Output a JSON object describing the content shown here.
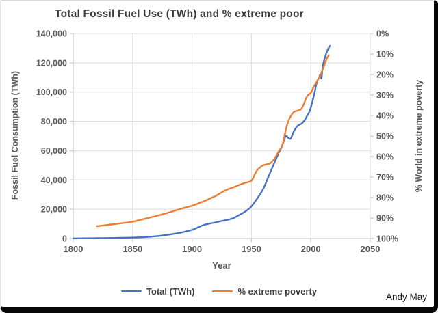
{
  "credit": "Andy May",
  "colors": {
    "series_total": "#4472C4",
    "series_poverty": "#ED7D31",
    "gridline": "#dcdcdc",
    "axis_line": "#bfbfbf",
    "tick_text": "#595959"
  },
  "chart_data": {
    "type": "line",
    "title": "Total Fossil Fuel Use (TWh) and % extreme poor",
    "grid": true,
    "x_axis": {
      "label": "Year",
      "min": 1800,
      "max": 2050,
      "tick_values": [
        1800,
        1850,
        1900,
        1950,
        2000,
        2050
      ],
      "ticks": [
        "1800",
        "1850",
        "1900",
        "1950",
        "2000",
        "2050"
      ]
    },
    "y_left": {
      "label": "Fossil Fuel Consumption (TWh)",
      "min": 0,
      "max": 140000,
      "tick_values": [
        140000,
        120000,
        100000,
        80000,
        60000,
        40000,
        20000,
        0
      ],
      "ticks": [
        "140,000",
        "120,000",
        "100,000",
        "80,000",
        "60,000",
        "40,000",
        "20,000",
        "0"
      ]
    },
    "y_right": {
      "label": "% World in extreme poverty",
      "min": 0,
      "max": 100,
      "inverted": true,
      "tick_values": [
        0,
        10,
        20,
        30,
        40,
        50,
        60,
        70,
        80,
        90,
        100
      ],
      "ticks": [
        "0%",
        "10%",
        "20%",
        "30%",
        "40%",
        "50%",
        "60%",
        "70%",
        "80%",
        "90%",
        "100%"
      ]
    },
    "legend": {
      "position": "bottom",
      "items": [
        {
          "label": "Total (TWh)",
          "color": "#4472C4"
        },
        {
          "label": "% extreme poverty",
          "color": "#ED7D31"
        }
      ]
    },
    "series": [
      {
        "name": "Total (TWh)",
        "axis": "left",
        "color": "#4472C4",
        "points": [
          [
            1800,
            100
          ],
          [
            1810,
            150
          ],
          [
            1820,
            220
          ],
          [
            1830,
            320
          ],
          [
            1840,
            450
          ],
          [
            1850,
            650
          ],
          [
            1860,
            1000
          ],
          [
            1870,
            1600
          ],
          [
            1880,
            2600
          ],
          [
            1890,
            3900
          ],
          [
            1900,
            5900
          ],
          [
            1905,
            7600
          ],
          [
            1910,
            9300
          ],
          [
            1915,
            10200
          ],
          [
            1920,
            11000
          ],
          [
            1925,
            12000
          ],
          [
            1930,
            12800
          ],
          [
            1935,
            14000
          ],
          [
            1940,
            16200
          ],
          [
            1945,
            18500
          ],
          [
            1950,
            22000
          ],
          [
            1955,
            27500
          ],
          [
            1960,
            34000
          ],
          [
            1965,
            43500
          ],
          [
            1970,
            53000
          ],
          [
            1973,
            58500
          ],
          [
            1975,
            61500
          ],
          [
            1977,
            66000
          ],
          [
            1979,
            70000
          ],
          [
            1981,
            68800
          ],
          [
            1983,
            68200
          ],
          [
            1985,
            72000
          ],
          [
            1987,
            75000
          ],
          [
            1989,
            77000
          ],
          [
            1991,
            78000
          ],
          [
            1993,
            79000
          ],
          [
            1995,
            81000
          ],
          [
            1997,
            84000
          ],
          [
            1999,
            87000
          ],
          [
            2001,
            92500
          ],
          [
            2003,
            99000
          ],
          [
            2005,
            106500
          ],
          [
            2007,
            110000
          ],
          [
            2008,
            112000
          ],
          [
            2009,
            109500
          ],
          [
            2010,
            117500
          ],
          [
            2012,
            124000
          ],
          [
            2014,
            128500
          ],
          [
            2016,
            131500
          ]
        ]
      },
      {
        "name": "% extreme poverty",
        "axis": "right",
        "color": "#ED7D31",
        "points": [
          [
            1820,
            94
          ],
          [
            1830,
            93.3
          ],
          [
            1840,
            92.6
          ],
          [
            1850,
            91.8
          ],
          [
            1860,
            90.4
          ],
          [
            1870,
            89
          ],
          [
            1880,
            87.4
          ],
          [
            1890,
            85.6
          ],
          [
            1900,
            84
          ],
          [
            1910,
            81.8
          ],
          [
            1915,
            80.5
          ],
          [
            1920,
            79.2
          ],
          [
            1925,
            77.5
          ],
          [
            1930,
            76
          ],
          [
            1935,
            75
          ],
          [
            1940,
            73.8
          ],
          [
            1945,
            72.8
          ],
          [
            1950,
            71.8
          ],
          [
            1953,
            68.5
          ],
          [
            1955,
            66.5
          ],
          [
            1958,
            65
          ],
          [
            1960,
            64.2
          ],
          [
            1963,
            63.8
          ],
          [
            1966,
            63.2
          ],
          [
            1970,
            60.5
          ],
          [
            1973,
            57.5
          ],
          [
            1976,
            54.5
          ],
          [
            1978,
            49.5
          ],
          [
            1980,
            44.5
          ],
          [
            1982,
            41.5
          ],
          [
            1984,
            39.5
          ],
          [
            1986,
            38.2
          ],
          [
            1988,
            37.8
          ],
          [
            1990,
            37.4
          ],
          [
            1992,
            36.8
          ],
          [
            1994,
            34.5
          ],
          [
            1996,
            31.5
          ],
          [
            1998,
            29.8
          ],
          [
            2000,
            29
          ],
          [
            2002,
            26.5
          ],
          [
            2004,
            24.5
          ],
          [
            2006,
            22.5
          ],
          [
            2008,
            20.5
          ],
          [
            2009,
            19
          ],
          [
            2010,
            17.5
          ],
          [
            2011,
            16
          ],
          [
            2013,
            12.8
          ],
          [
            2015,
            10.5
          ]
        ]
      }
    ]
  }
}
